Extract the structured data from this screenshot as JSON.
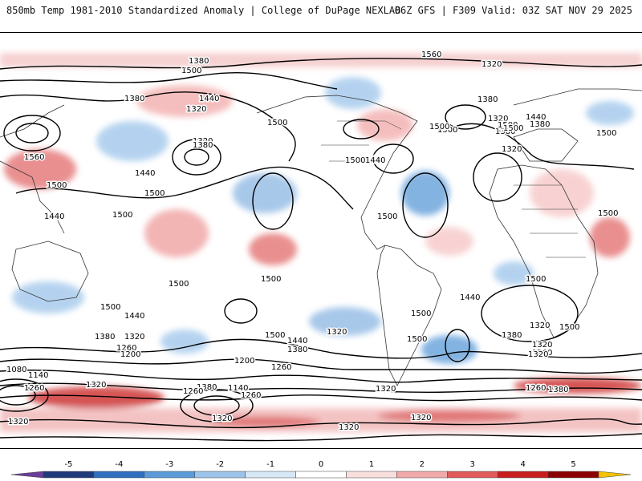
{
  "header": {
    "left": "850mb Temp 1981-2010 Standardized Anomaly | College of DuPage NEXLAB",
    "right": "06Z GFS | F309 Valid: 03Z SAT NOV 29 2025"
  },
  "map": {
    "field": "850mb temperature standardized anomaly",
    "contour_field_values": [
      "1080",
      "1140",
      "1200",
      "1260",
      "1320",
      "1380",
      "1440",
      "1500",
      "1560"
    ],
    "contour_labels": [
      "1380",
      "1500",
      "1320",
      "1440",
      "1380",
      "1320",
      "1500",
      "1440",
      "1380",
      "1500",
      "1560",
      "1500",
      "1500",
      "1440",
      "1500",
      "1500",
      "1500",
      "1440",
      "1380",
      "1320",
      "1260",
      "1200",
      "1080",
      "1140",
      "1320",
      "1260",
      "1320",
      "1380",
      "1500",
      "1440",
      "1380",
      "1320",
      "1260",
      "1200",
      "1260",
      "1140",
      "1260",
      "1320",
      "1320",
      "1500",
      "1320",
      "1500",
      "1320",
      "1320",
      "1380",
      "1500",
      "1440",
      "1380",
      "1500",
      "1500",
      "1500",
      "1440",
      "1500",
      "1500",
      "1380",
      "1320",
      "1260",
      "1260",
      "1380",
      "1500",
      "1320",
      "1320",
      "1320",
      "1560",
      "1440",
      "1500",
      "1500",
      "1500",
      "1380",
      "1320"
    ]
  },
  "colorbar": {
    "ticks": [
      "-5",
      "-4",
      "-3",
      "-2",
      "-1",
      "0",
      "1",
      "2",
      "3",
      "4",
      "5"
    ],
    "colors": [
      "#6a3d9a",
      "#1f3a7a",
      "#2f6fc0",
      "#5a9ad8",
      "#9cc4ea",
      "#d6e7f6",
      "#ffffff",
      "#f9dede",
      "#f2a9a9",
      "#e25b5b",
      "#c81e1e",
      "#8b0000",
      "#f5c200"
    ],
    "map_positive_color": "#e89a9a",
    "map_negative_color": "#8bb6e3"
  }
}
